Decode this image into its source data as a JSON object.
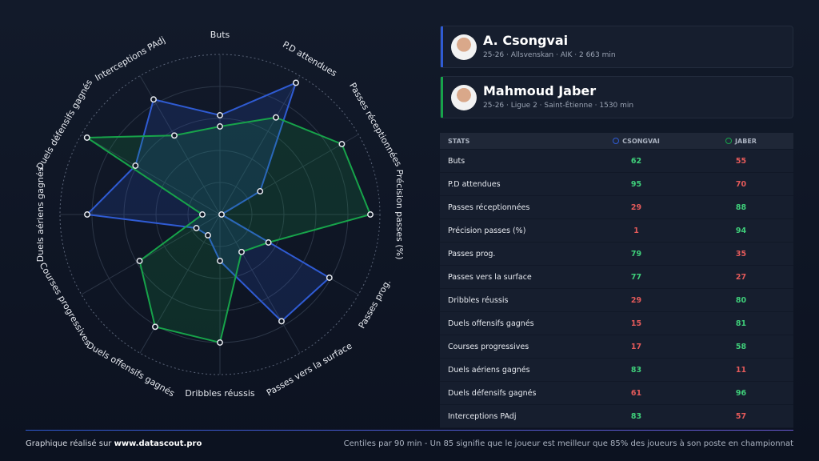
{
  "players": [
    {
      "details": "25-26 · Allsvenskan · AIK · 2 663 min"
    },
    {
      "details": "25-26 · Ligue 2 · Saint-Étienne · 1530 min"
    }
  ],
  "chart_data": {
    "type": "radar",
    "categories": [
      "Buts",
      "P.D attendues",
      "Passes réceptionnées",
      "Précision passes (%)",
      "Passes prog.",
      "Passes vers la surface",
      "Dribbles réussis",
      "Duels offensifs gagnés",
      "Courses progressives",
      "Duels aériens gagnés",
      "Duels défensifs gagnés",
      "Interceptions PAdj"
    ],
    "series": [
      {
        "name": "A. Csongvai",
        "color": "#2f5bd3",
        "values": [
          62,
          95,
          29,
          1,
          79,
          77,
          29,
          15,
          17,
          83,
          61,
          83
        ]
      },
      {
        "name": "Mahmoud Jaber",
        "color": "#17a34a",
        "values": [
          55,
          70,
          88,
          94,
          35,
          27,
          80,
          81,
          58,
          11,
          96,
          57
        ]
      }
    ],
    "rlim": [
      0,
      100
    ],
    "rticks": [
      20,
      40,
      60,
      80,
      100
    ],
    "grid": true
  },
  "table": {
    "headers": [
      "STATS",
      "CSONGVAI",
      "JABER"
    ]
  },
  "footer": {
    "credit_prefix": "Graphique réalisé sur",
    "credit_site": "www.datascout.pro",
    "note": "Centiles par 90 min - Un 85 signifie que le joueur est meilleur que 85% des joueurs à son poste en championnat"
  }
}
